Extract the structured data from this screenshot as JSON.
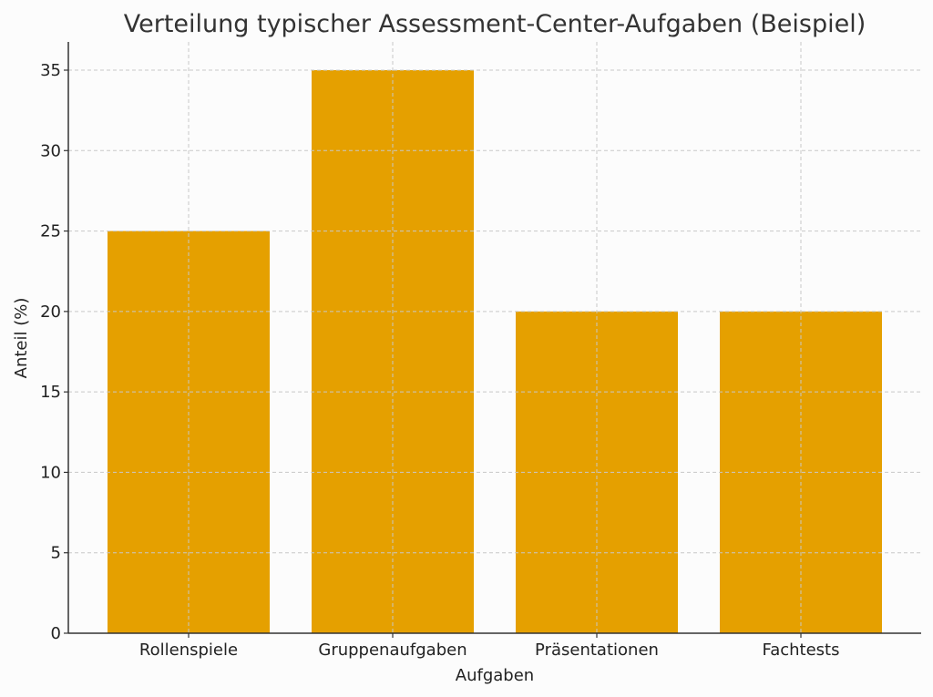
{
  "chart_data": {
    "type": "bar",
    "title": "Verteilung typischer Assessment-Center-Aufgaben (Beispiel)",
    "xlabel": "Aufgaben",
    "ylabel": "Anteil (%)",
    "categories": [
      "Rollenspiele",
      "Gruppenaufgaben",
      "Präsentationen",
      "Fachtests"
    ],
    "values": [
      25,
      35,
      20,
      20
    ],
    "ylim": [
      0,
      36.75
    ],
    "yticks": [
      0,
      5,
      10,
      15,
      20,
      25,
      30,
      35
    ],
    "grid": true,
    "bar_color": "#e5a000",
    "legend": null
  }
}
